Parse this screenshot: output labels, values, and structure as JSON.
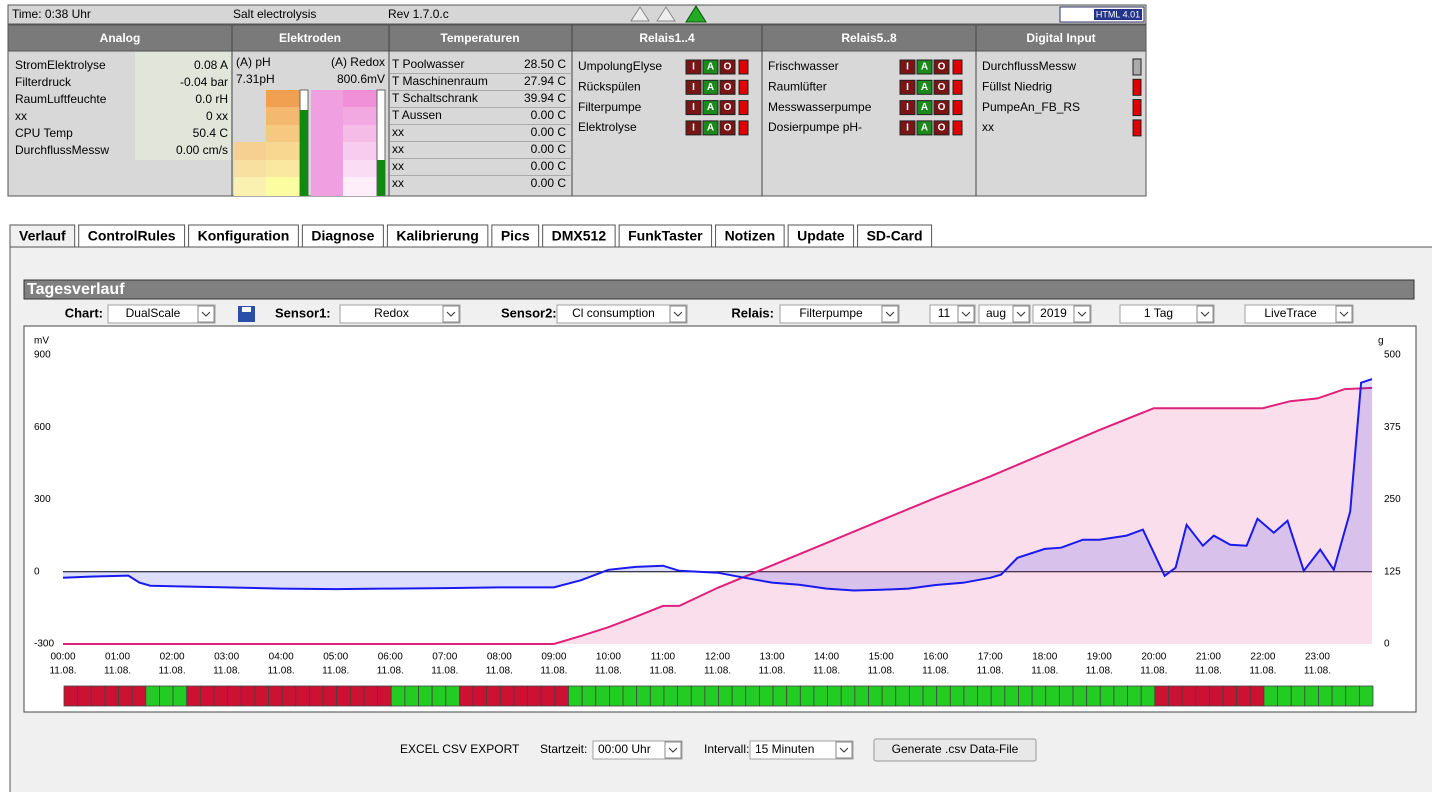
{
  "header": {
    "time": "Time: 0:38 Uhr",
    "project": "Salt electrolysis",
    "rev": "Rev 1.7.0.c",
    "badge": "HTML 4.01"
  },
  "sections": [
    "Analog",
    "Elektroden",
    "Temperaturen",
    "Relais1..4",
    "Relais5..8",
    "Digital Input"
  ],
  "analog": [
    [
      "StromElektrolyse",
      "0.08 A"
    ],
    [
      "Filterdruck",
      "-0.04 bar"
    ],
    [
      "RaumLuftfeuchte",
      "0.0 rH"
    ],
    [
      "xx",
      "0 xx"
    ],
    [
      "CPU Temp",
      "50.4 C"
    ],
    [
      "DurchflussMessw",
      "0.00 cm/s"
    ]
  ],
  "elektroden": {
    "ph_label": "(A) pH",
    "ph_value": "7.31pH",
    "redox_label": "(A) Redox",
    "redox_value": "800.6mV"
  },
  "temperaturen": [
    [
      "T Poolwasser",
      "28.50 C"
    ],
    [
      "T Maschinenraum",
      "27.94 C"
    ],
    [
      "T Schaltschrank",
      "39.94 C"
    ],
    [
      "T Aussen",
      "0.00 C"
    ],
    [
      "xx",
      "0.00 C"
    ],
    [
      "xx",
      "0.00 C"
    ],
    [
      "xx",
      "0.00 C"
    ],
    [
      "xx",
      "0.00 C"
    ]
  ],
  "relais1": [
    "UmpolungElyse",
    "Rückspülen",
    "Filterpumpe",
    "Elektrolyse"
  ],
  "relais2": [
    "Frischwasser",
    "Raumlüfter",
    "Messwasserpumpe",
    "Dosierpumpe pH-"
  ],
  "relay_buttons": [
    "I",
    "A",
    "O"
  ],
  "digital": [
    "DurchflussMessw",
    "Füllst Niedrig",
    "PumpeAn_FB_RS",
    "xx"
  ],
  "tabs": [
    "Verlauf",
    "ControlRules",
    "Konfiguration",
    "Diagnose",
    "Kalibrierung",
    "Pics",
    "DMX512",
    "FunkTaster",
    "Notizen",
    "Update",
    "SD-Card"
  ],
  "tagesverlauf": {
    "title": "Tagesverlauf",
    "chart_label": "Chart:",
    "chart": "DualScale",
    "sensor1_label": "Sensor1:",
    "sensor2_label": "Sensor2:",
    "relais_label": "Relais:",
    "relais": "Filterpumpe",
    "day": "11",
    "month": "aug",
    "year": "2019",
    "span": "1 Tag",
    "mode": "LiveTrace"
  },
  "export": {
    "title": "EXCEL CSV EXPORT",
    "start_label": "Startzeit:",
    "start": "00:00 Uhr",
    "interval_label": "Intervall:",
    "interval": "15 Minuten",
    "button": "Generate .csv Data-File"
  },
  "chart_data": {
    "type": "line",
    "y_unit": "mV",
    "y2_unit": "g",
    "xlim": [
      0,
      24
    ],
    "xticks": [
      {
        "value": 0,
        "label": "00:00"
      },
      {
        "value": 1,
        "label": "01:00"
      },
      {
        "value": 2,
        "label": "02:00"
      },
      {
        "value": 3,
        "label": "03:00"
      },
      {
        "value": 4,
        "label": "04:00"
      },
      {
        "value": 5,
        "label": "05:00"
      },
      {
        "value": 6,
        "label": "06:00"
      },
      {
        "value": 7,
        "label": "07:00"
      },
      {
        "value": 8,
        "label": "08:00"
      },
      {
        "value": 9,
        "label": "09:00"
      },
      {
        "value": 10,
        "label": "10:00"
      },
      {
        "value": 11,
        "label": "11:00"
      },
      {
        "value": 12,
        "label": "12:00"
      },
      {
        "value": 13,
        "label": "13:00"
      },
      {
        "value": 14,
        "label": "14:00"
      },
      {
        "value": 15,
        "label": "15:00"
      },
      {
        "value": 16,
        "label": "16:00"
      },
      {
        "value": 17,
        "label": "17:00"
      },
      {
        "value": 18,
        "label": "18:00"
      },
      {
        "value": 19,
        "label": "19:00"
      },
      {
        "value": 20,
        "label": "20:00"
      },
      {
        "value": 21,
        "label": "21:00"
      },
      {
        "value": 22,
        "label": "22:00"
      },
      {
        "value": 23,
        "label": "23:00"
      }
    ],
    "xtick_dates": [
      "11.08.",
      "11.08.",
      "11.08.",
      "11.08.",
      "11.08.",
      "11.08.",
      "11.08.",
      "11.08.",
      "11.08.",
      "11.08.",
      "11.08.",
      "11.08.",
      "11.08.",
      "11.08.",
      "11.08.",
      "11.08.",
      "11.08.",
      "11.08.",
      "11.08.",
      "11.08.",
      "11.08.",
      "11.08.",
      "11.08.",
      "11.08."
    ],
    "ylim": [
      -300,
      900
    ],
    "yticks": [
      -300,
      0,
      300,
      600,
      900
    ],
    "y2lim": [
      0,
      500
    ],
    "y2ticks": [
      0,
      125,
      250,
      375,
      500
    ],
    "series": [
      {
        "name": "Redox",
        "color": "#1a1aee",
        "axis": "y",
        "x": [
          0,
          0.5,
          1.2,
          1.4,
          1.6,
          2,
          3,
          4,
          5,
          6,
          7,
          8,
          9,
          9.5,
          10,
          10.5,
          11,
          11.3,
          12,
          12.5,
          13,
          13.5,
          14,
          14.5,
          15,
          15.5,
          16,
          16.5,
          17,
          17.2,
          17.5,
          18,
          18.3,
          18.7,
          19,
          19.5,
          19.8,
          20.2,
          20.4,
          20.6,
          20.9,
          21.1,
          21.4,
          21.7,
          21.9,
          22.2,
          22.45,
          22.75,
          23.05,
          23.3,
          23.6,
          23.8,
          24
        ],
        "values": [
          -25,
          -20,
          -16,
          -45,
          -58,
          -60,
          -65,
          -70,
          -72,
          -70,
          -68,
          -65,
          -65,
          -35,
          8,
          20,
          25,
          4,
          -4,
          -25,
          -45,
          -54,
          -70,
          -78,
          -75,
          -70,
          -55,
          -46,
          -25,
          -12,
          58,
          95,
          100,
          133,
          133,
          150,
          175,
          -17,
          17,
          195,
          108,
          150,
          112,
          108,
          220,
          162,
          212,
          4,
          92,
          8,
          250,
          785,
          800
        ]
      },
      {
        "name": "Cl consumption",
        "color": "#e0207a",
        "axis": "y2",
        "x": [
          0,
          9,
          9.5,
          10,
          10.5,
          11,
          11.3,
          12,
          13,
          14,
          15,
          16,
          17,
          18,
          19,
          20,
          21,
          22,
          22.5,
          23,
          23.5,
          24
        ],
        "values": [
          0,
          0,
          14,
          29,
          47,
          66,
          66,
          97,
          136,
          175,
          214,
          253,
          290,
          330,
          370,
          408,
          408,
          408,
          420,
          425,
          441,
          443
        ]
      }
    ],
    "relay_states": [
      0,
      0,
      0,
      0,
      0,
      0,
      1,
      1,
      1,
      0,
      0,
      0,
      0,
      0,
      0,
      0,
      0,
      0,
      0,
      0,
      0,
      0,
      0,
      0,
      1,
      1,
      1,
      1,
      1,
      0,
      0,
      0,
      0,
      0,
      0,
      0,
      0,
      1,
      1,
      1,
      1,
      1,
      1,
      1,
      1,
      1,
      1,
      1,
      1,
      1,
      1,
      1,
      1,
      1,
      1,
      1,
      1,
      1,
      1,
      1,
      1,
      1,
      1,
      1,
      1,
      1,
      1,
      1,
      1,
      1,
      1,
      1,
      1,
      1,
      1,
      1,
      1,
      1,
      1,
      1,
      0,
      0,
      0,
      0,
      0,
      0,
      0,
      0,
      1,
      1,
      1,
      1,
      1,
      1,
      1,
      1
    ],
    "relay_on_color": "#22cc22",
    "relay_off_color": "#cc1133"
  }
}
